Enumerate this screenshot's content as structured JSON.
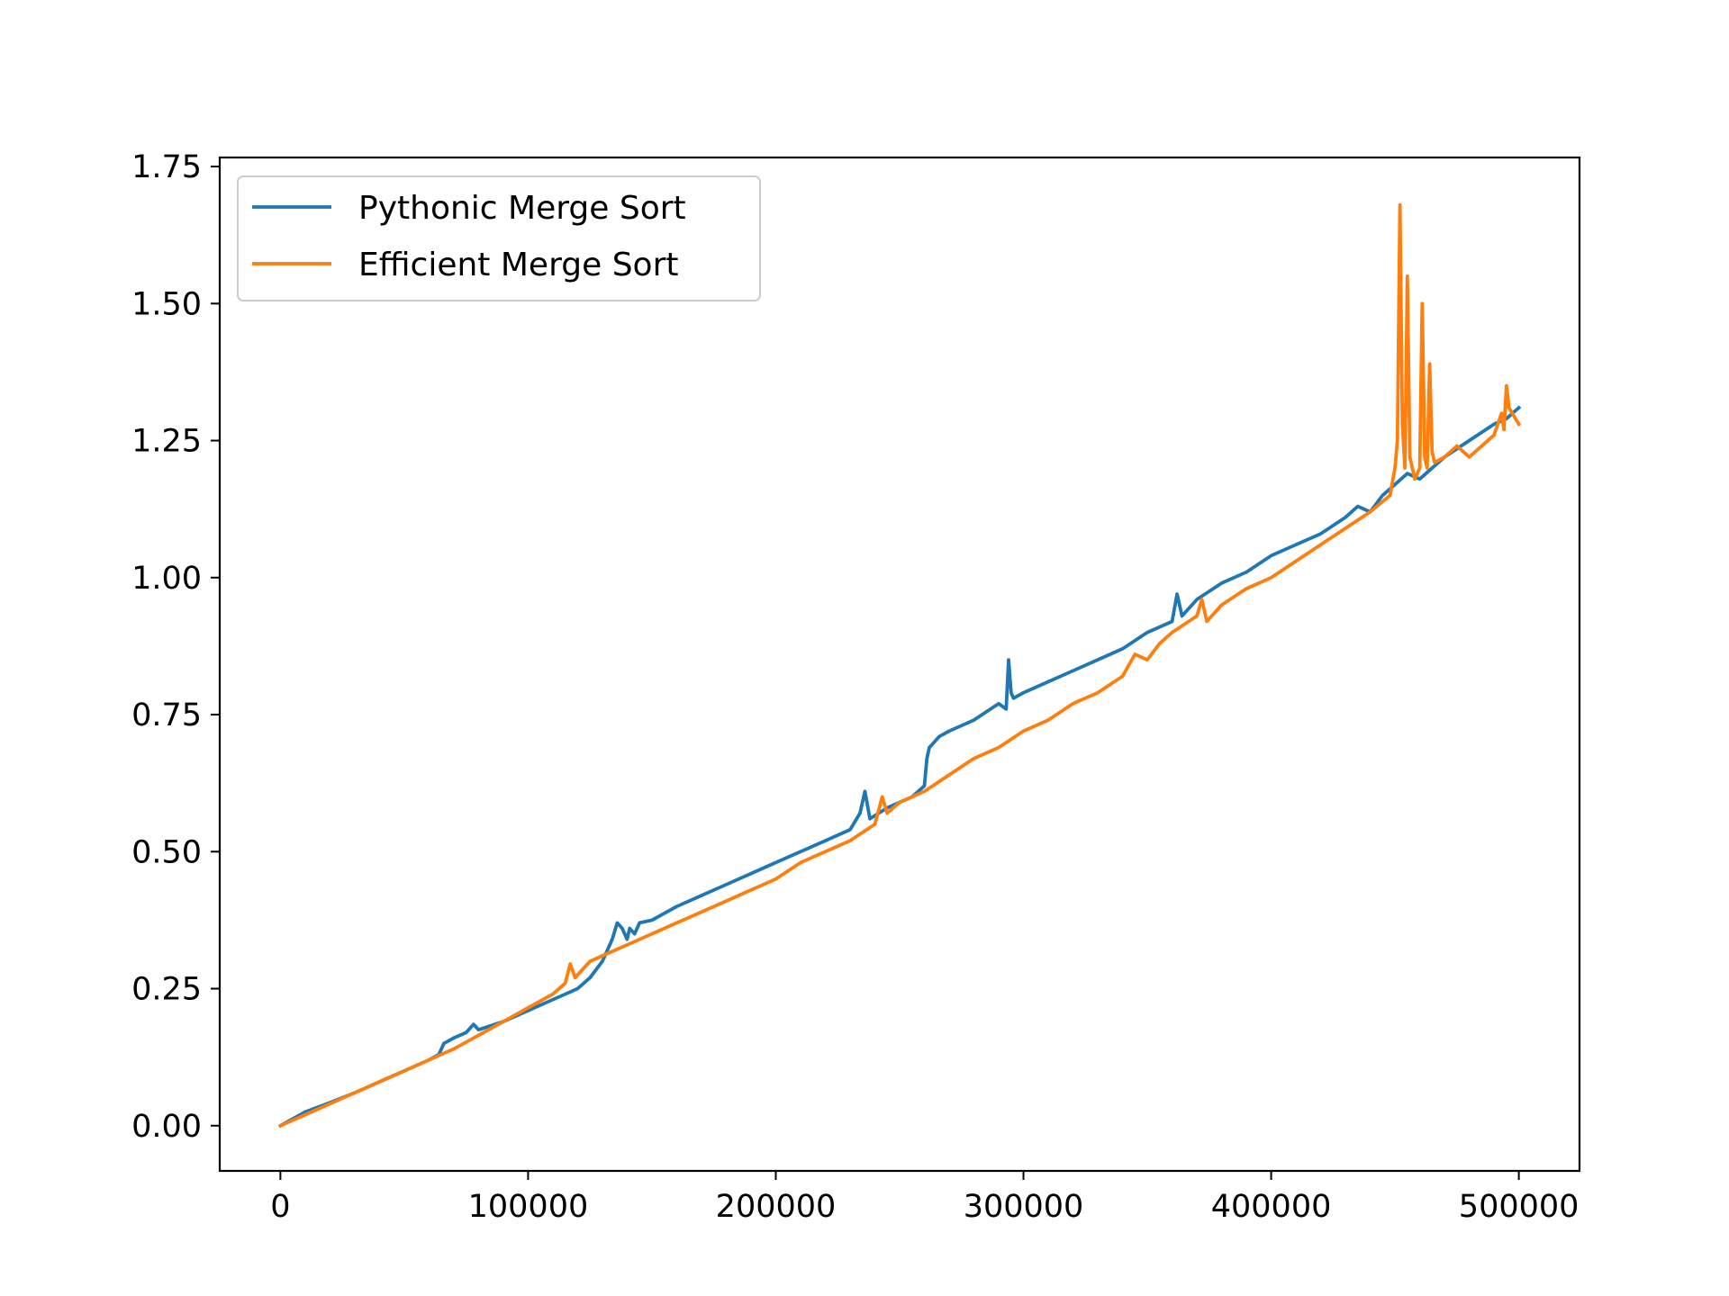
{
  "chart_data": {
    "type": "line",
    "title": "",
    "xlabel": "",
    "ylabel": "",
    "xlim": [
      -24500,
      524500
    ],
    "ylim": [
      -0.0825,
      1.7665
    ],
    "xticks": [
      0,
      100000,
      200000,
      300000,
      400000,
      500000
    ],
    "xtick_labels": [
      "0",
      "100000",
      "200000",
      "300000",
      "400000",
      "500000"
    ],
    "yticks": [
      0,
      0.25,
      0.5,
      0.75,
      1.0,
      1.25,
      1.5,
      1.75
    ],
    "ytick_labels": [
      "0.00",
      "0.25",
      "0.50",
      "0.75",
      "1.00",
      "1.25",
      "1.50",
      "1.75"
    ],
    "grid": false,
    "legend_position": "upper-left",
    "series": [
      {
        "name": "Pythonic Merge Sort",
        "color": "#1f77b4",
        "x": [
          0,
          10000,
          20000,
          30000,
          40000,
          50000,
          60000,
          64000,
          66000,
          70000,
          75000,
          78000,
          80000,
          90000,
          100000,
          110000,
          120000,
          125000,
          130000,
          134000,
          136000,
          138000,
          140000,
          141000,
          143000,
          145000,
          150000,
          160000,
          170000,
          180000,
          190000,
          200000,
          210000,
          220000,
          230000,
          234000,
          236000,
          238000,
          245000,
          255000,
          260000,
          261000,
          262000,
          264000,
          266000,
          270000,
          280000,
          290000,
          293000,
          294000,
          295000,
          296000,
          300000,
          310000,
          320000,
          330000,
          340000,
          350000,
          360000,
          362000,
          364000,
          370000,
          380000,
          390000,
          400000,
          410000,
          420000,
          430000,
          435000,
          440000,
          445000,
          450000,
          455000,
          460000,
          470000,
          480000,
          490000,
          495000,
          500000
        ],
        "values": [
          0.0,
          0.025,
          0.042,
          0.06,
          0.08,
          0.1,
          0.12,
          0.13,
          0.15,
          0.16,
          0.17,
          0.185,
          0.175,
          0.19,
          0.21,
          0.23,
          0.25,
          0.27,
          0.3,
          0.34,
          0.37,
          0.36,
          0.34,
          0.36,
          0.35,
          0.37,
          0.375,
          0.4,
          0.42,
          0.44,
          0.46,
          0.48,
          0.5,
          0.52,
          0.54,
          0.57,
          0.61,
          0.56,
          0.58,
          0.6,
          0.62,
          0.67,
          0.69,
          0.7,
          0.71,
          0.72,
          0.74,
          0.77,
          0.76,
          0.85,
          0.79,
          0.78,
          0.79,
          0.81,
          0.83,
          0.85,
          0.87,
          0.9,
          0.92,
          0.97,
          0.93,
          0.96,
          0.99,
          1.01,
          1.04,
          1.06,
          1.08,
          1.11,
          1.13,
          1.12,
          1.15,
          1.17,
          1.19,
          1.18,
          1.22,
          1.25,
          1.28,
          1.29,
          1.31
        ]
      },
      {
        "name": "Efficient Merge Sort",
        "color": "#ff7f0e",
        "x": [
          0,
          10000,
          20000,
          30000,
          40000,
          50000,
          60000,
          70000,
          80000,
          90000,
          100000,
          110000,
          115000,
          117000,
          119000,
          121000,
          125000,
          130000,
          140000,
          150000,
          160000,
          170000,
          180000,
          190000,
          200000,
          210000,
          220000,
          230000,
          240000,
          243000,
          245000,
          250000,
          260000,
          270000,
          280000,
          290000,
          300000,
          310000,
          320000,
          330000,
          340000,
          345000,
          350000,
          355000,
          360000,
          370000,
          372000,
          374000,
          380000,
          390000,
          400000,
          410000,
          420000,
          430000,
          440000,
          448000,
          450000,
          451000,
          452000,
          453000,
          454000,
          455000,
          456000,
          458000,
          460000,
          461000,
          462000,
          463000,
          464000,
          465000,
          466000,
          470000,
          475000,
          480000,
          490000,
          493000,
          494000,
          495000,
          496000,
          500000
        ],
        "values": [
          0.0,
          0.02,
          0.04,
          0.06,
          0.08,
          0.1,
          0.12,
          0.14,
          0.165,
          0.19,
          0.215,
          0.24,
          0.26,
          0.295,
          0.27,
          0.28,
          0.3,
          0.31,
          0.33,
          0.35,
          0.37,
          0.39,
          0.41,
          0.43,
          0.45,
          0.48,
          0.5,
          0.52,
          0.55,
          0.6,
          0.57,
          0.59,
          0.61,
          0.64,
          0.67,
          0.69,
          0.72,
          0.74,
          0.77,
          0.79,
          0.82,
          0.86,
          0.85,
          0.88,
          0.9,
          0.93,
          0.96,
          0.92,
          0.95,
          0.98,
          1.0,
          1.03,
          1.06,
          1.09,
          1.12,
          1.15,
          1.2,
          1.25,
          1.68,
          1.28,
          1.2,
          1.55,
          1.22,
          1.18,
          1.2,
          1.5,
          1.22,
          1.2,
          1.39,
          1.23,
          1.21,
          1.22,
          1.24,
          1.22,
          1.26,
          1.3,
          1.27,
          1.35,
          1.31,
          1.28
        ]
      }
    ]
  }
}
